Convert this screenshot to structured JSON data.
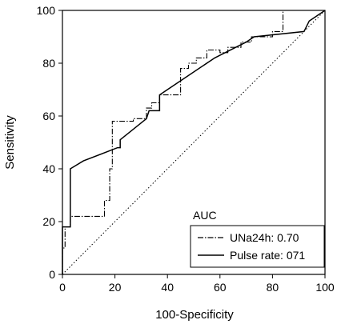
{
  "chart_data": {
    "type": "line",
    "title": "",
    "xlabel": "100-Specificity",
    "ylabel": "Sensitivity",
    "xlim": [
      0,
      100
    ],
    "ylim": [
      0,
      100
    ],
    "xticks": [
      0,
      20,
      40,
      60,
      80,
      100
    ],
    "yticks": [
      0,
      20,
      40,
      60,
      80,
      100
    ],
    "grid": false,
    "legend": {
      "title": "AUC",
      "placement": "bottom-right",
      "entries": [
        "UNa24h: 0.70",
        "Pulse rate: 071"
      ]
    },
    "series": [
      {
        "name": "UNa24h: 0.70",
        "style": "dashdot",
        "x": [
          0,
          0,
          1,
          1,
          3,
          3,
          16,
          16,
          18,
          18,
          19,
          19,
          27,
          27,
          32,
          32,
          34,
          34,
          37,
          37,
          45,
          45,
          48,
          48,
          51,
          51,
          55,
          55,
          60,
          60,
          63,
          63,
          68,
          68,
          72,
          72,
          80,
          80,
          84,
          84,
          100
        ],
        "y": [
          0,
          10,
          10,
          18,
          18,
          22,
          22,
          28,
          28,
          40,
          40,
          58,
          58,
          59,
          59,
          63,
          63,
          65,
          65,
          68,
          68,
          78,
          78,
          80,
          80,
          82,
          82,
          85,
          85,
          84,
          84,
          86,
          86,
          88,
          88,
          90,
          90,
          92,
          92,
          100,
          100
        ]
      },
      {
        "name": "Pulse rate: 071",
        "style": "solid",
        "x": [
          0,
          0,
          3,
          3,
          8,
          21,
          22,
          22,
          32,
          33,
          37,
          37,
          40,
          58,
          60,
          70,
          73,
          92,
          93,
          94,
          97,
          100
        ],
        "y": [
          0,
          18,
          18,
          40,
          43,
          48,
          48,
          51,
          59,
          62,
          62,
          68,
          70,
          82,
          83,
          88,
          90,
          92,
          94,
          96,
          98,
          100
        ]
      },
      {
        "name": "",
        "style": "dotted",
        "x": [
          0,
          100
        ],
        "y": [
          0,
          100
        ]
      }
    ]
  }
}
